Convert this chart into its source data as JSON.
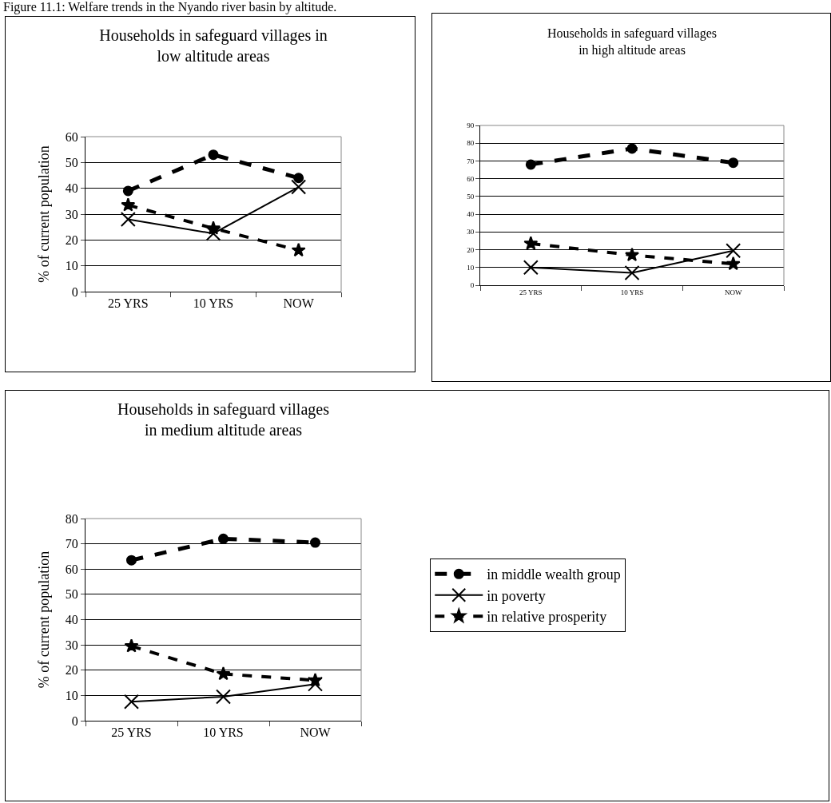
{
  "chart_data": [
    {
      "type": "line",
      "title": "Households in safeguard villages in low altitude areas",
      "ylabel": "% of current population",
      "annotations": [
        "Figure 11.1: Welfare trends in the Nyando river basin by altitude."
      ],
      "categories": [
        "25 YRS",
        "10 YRS",
        "NOW"
      ],
      "ylim": [
        0,
        60
      ],
      "yticks": [
        0,
        10,
        20,
        30,
        40,
        50,
        60
      ],
      "grid": "y",
      "legend": false,
      "series": [
        {
          "color": "#000000",
          "marker": "circle",
          "line_style": "dashed",
          "values": [
            39,
            53,
            44
          ]
        },
        {
          "color": "#000000",
          "marker": "cross",
          "line_style": "solid",
          "values": [
            28,
            22.5,
            40.5
          ]
        },
        {
          "color": "#000000",
          "marker": "star",
          "line_style": "dashed",
          "values": [
            33.5,
            24.5,
            16
          ]
        }
      ]
    },
    {
      "type": "line",
      "title": "Households in safeguard villages in high altitude areas",
      "categories": [
        "25 YRS",
        "10 YRS",
        "NOW"
      ],
      "ylim": [
        0,
        90
      ],
      "yticks": [
        0,
        10,
        20,
        30,
        40,
        50,
        60,
        70,
        80,
        90
      ],
      "grid": "y",
      "legend": false,
      "series": [
        {
          "color": "#000000",
          "marker": "circle",
          "line_style": "dashed",
          "values": [
            68,
            77,
            69
          ]
        },
        {
          "color": "#000000",
          "marker": "cross",
          "line_style": "solid",
          "values": [
            10,
            7,
            19.5
          ]
        },
        {
          "color": "#000000",
          "marker": "star",
          "line_style": "dashed",
          "values": [
            23.5,
            17,
            12
          ]
        }
      ]
    },
    {
      "type": "line",
      "title": "Households in safeguard villages in medium altitude areas",
      "ylabel": "% of current population",
      "categories": [
        "25 YRS",
        "10 YRS",
        "NOW"
      ],
      "ylim": [
        0,
        80
      ],
      "yticks": [
        0,
        10,
        20,
        30,
        40,
        50,
        60,
        70,
        80
      ],
      "grid": "y",
      "legend": "right",
      "series": [
        {
          "name": "in middle wealth group",
          "color": "#000000",
          "marker": "circle",
          "line_style": "dashed",
          "values": [
            63.5,
            72,
            70.5
          ]
        },
        {
          "name": "in poverty",
          "color": "#000000",
          "marker": "cross",
          "line_style": "solid",
          "values": [
            7.5,
            9.5,
            14.5
          ]
        },
        {
          "name": "in relative prosperity",
          "color": "#000000",
          "marker": "star",
          "line_style": "dashed",
          "values": [
            29.5,
            18.5,
            16
          ]
        }
      ]
    }
  ]
}
